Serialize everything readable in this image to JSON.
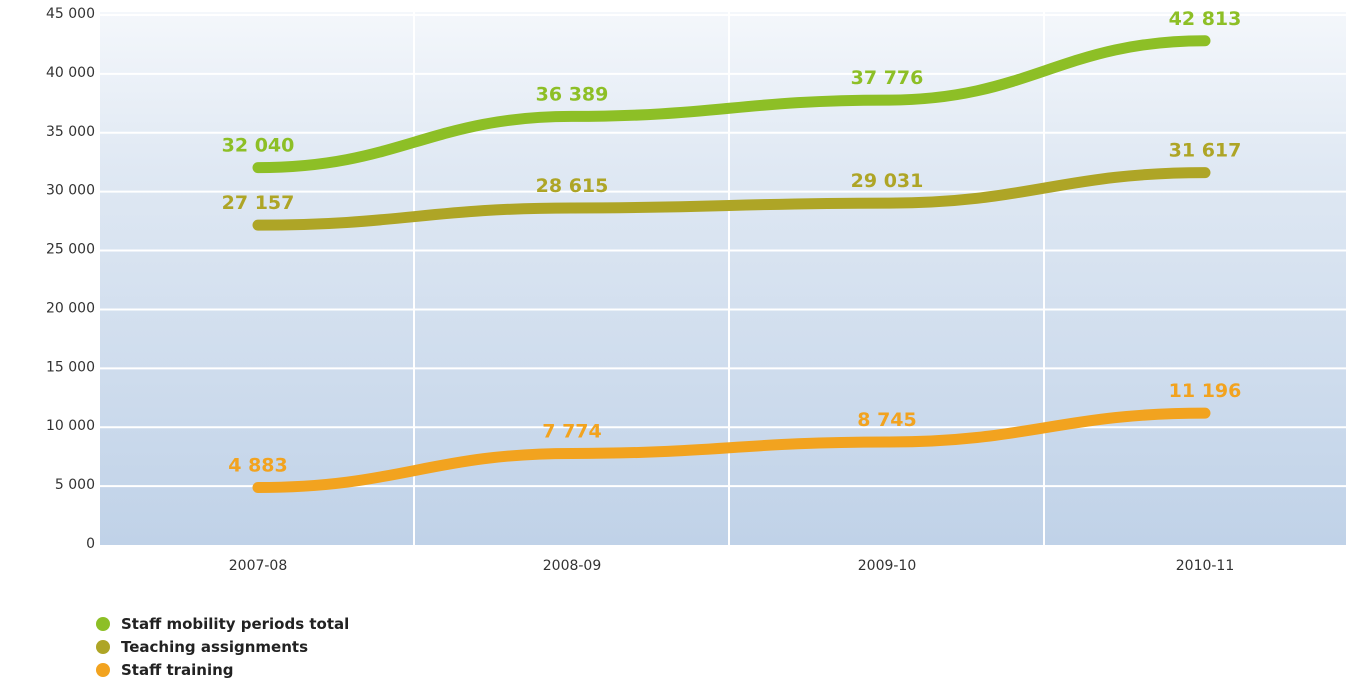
{
  "chart_data": {
    "type": "line",
    "title": "",
    "xlabel": "",
    "ylabel": "",
    "categories": [
      "2007-08",
      "2008-09",
      "2009-10",
      "2010-11"
    ],
    "ylim": [
      0,
      45000
    ],
    "yticks": [
      0,
      5000,
      10000,
      15000,
      20000,
      25000,
      30000,
      35000,
      40000,
      45000
    ],
    "ytick_labels": [
      "0",
      "5 000",
      "10 000",
      "15 000",
      "20 000",
      "25 000",
      "30 000",
      "35 000",
      "40 000",
      "45 000"
    ],
    "grid": true,
    "legend_position": "bottom-left",
    "series": [
      {
        "name": "Staff mobility periods total",
        "color": "#8dbf26",
        "values": [
          32040,
          36389,
          37776,
          42813
        ],
        "data_labels": [
          "32 040",
          "36 389",
          "37 776",
          "42 813"
        ]
      },
      {
        "name": "Teaching assignments",
        "color": "#aea526",
        "values": [
          27157,
          28615,
          29031,
          31617
        ],
        "data_labels": [
          "27 157",
          "28 615",
          "29 031",
          "31 617"
        ]
      },
      {
        "name": "Staff training",
        "color": "#f2a31f",
        "values": [
          4883,
          7774,
          8745,
          11196
        ],
        "data_labels": [
          "4 883",
          "7 774",
          "8 745",
          "11 196"
        ]
      }
    ]
  }
}
